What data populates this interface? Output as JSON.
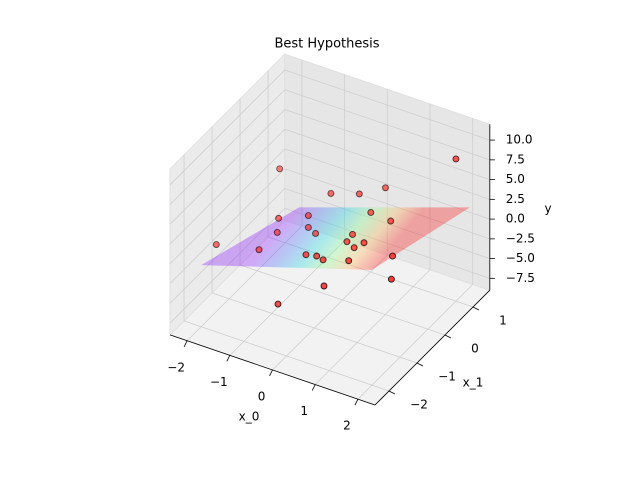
{
  "chart_data": {
    "type": "scatter3d",
    "title": "Best Hypothesis",
    "x0_label": "x_0",
    "x1_label": "x_1",
    "y_label": "y",
    "x0lim": [
      -2.4,
      2.4
    ],
    "x1lim": [
      -2.5,
      1.6
    ],
    "ylim": [
      -9,
      12
    ],
    "x0ticks": [
      {
        "value": -2,
        "label": "−2"
      },
      {
        "value": -1,
        "label": "−1"
      },
      0,
      1,
      2
    ],
    "x1ticks": [
      {
        "value": -2,
        "label": "−2"
      },
      {
        "value": -1,
        "label": "−1"
      },
      0,
      1
    ],
    "yticks": [
      {
        "value": -7.5,
        "label": "−7.5"
      },
      {
        "value": -5,
        "label": "−5.0"
      },
      {
        "value": -2.5,
        "label": "−2.5"
      },
      {
        "value": 0,
        "label": "0.0"
      },
      2.5,
      {
        "value": 5,
        "label": "5.0"
      },
      7.5,
      {
        "value": 10,
        "label": "10.0"
      }
    ],
    "grid": true,
    "surface": {
      "x0": [
        -2,
        2
      ],
      "x1": [
        -2,
        1.5
      ],
      "y": [
        [
          -1.2,
          -6.3
        ],
        [
          5.6,
          1.1
        ]
      ],
      "colormap": "rainbow"
    },
    "series": [
      {
        "color": "#ff2020",
        "x0": [
          2,
          -2.3,
          -0.2,
          -1.8,
          -0.6,
          0.35,
          1.5,
          1.8,
          0.55,
          -1.3,
          -1.2,
          -0.8,
          0,
          0.4,
          0.8,
          0.7,
          0.6,
          0.3,
          0.3,
          -0.5,
          -0.2,
          0.05,
          0.2,
          0.8,
          -0.8,
          -1.3
        ],
        "x1": [
          1,
          -1,
          -2,
          0.5,
          0.5,
          1,
          -0.5,
          -1,
          -1.5,
          -1,
          -0.5,
          0,
          0.6,
          0.4,
          0.5,
          -0.3,
          -0.5,
          -0.3,
          -0.1,
          -0.2,
          -1,
          -1,
          -1,
          -1,
          0,
          -0.3
        ],
        "y": [
          9.0,
          -2.7,
          -2.8,
          2.5,
          1.6,
          2.3,
          1.1,
          0.5,
          -0.9,
          -1.5,
          -0.9,
          0.2,
          2.3,
          1.4,
          0.7,
          0.6,
          0.5,
          0.0,
          0.2,
          -0.8,
          -0.1,
          0.2,
          0.0,
          1.0,
          -1.3,
          0.0
        ]
      }
    ]
  }
}
